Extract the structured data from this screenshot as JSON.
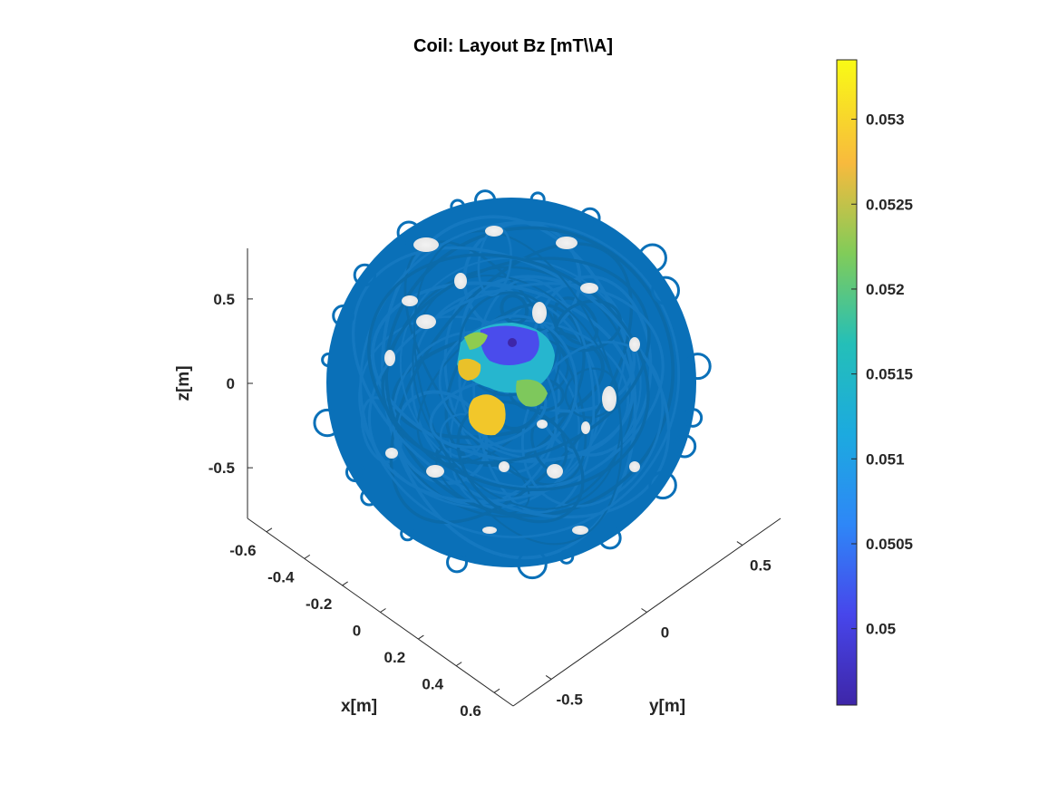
{
  "chart_data": {
    "type": "surface-3d",
    "title": "Coil: Layout Bz [mT\\\\A]",
    "xlabel": "x[m]",
    "ylabel": "y[m]",
    "zlabel": "z[m]",
    "x_ticks": [
      -0.6,
      -0.4,
      -0.2,
      0,
      0.2,
      0.4,
      0.6
    ],
    "x_tick_labels": [
      "-0.6",
      "-0.4",
      "-0.2",
      "0",
      "0.2",
      "0.4",
      "0.6"
    ],
    "y_ticks": [
      -0.5,
      0,
      0.5
    ],
    "y_tick_labels": [
      "-0.5",
      "0",
      "0.5"
    ],
    "z_ticks": [
      -0.5,
      0,
      0.5
    ],
    "z_tick_labels": [
      "-0.5",
      "0",
      "0.5"
    ],
    "xlim": [
      -0.7,
      0.7
    ],
    "ylim": [
      -0.7,
      0.7
    ],
    "zlim": [
      -0.8,
      0.8
    ],
    "colorbar": {
      "colormap": "parula",
      "range": [
        0.04955,
        0.05335
      ],
      "ticks": [
        0.05,
        0.0505,
        0.051,
        0.0515,
        0.052,
        0.0525,
        0.053
      ],
      "tick_labels": [
        "0.05",
        "0.0505",
        "0.051",
        "0.0515",
        "0.052",
        "0.0525",
        "0.053"
      ]
    },
    "series": [
      {
        "kind": "coil-wires",
        "color": "#0072bd",
        "shape": "sphere"
      },
      {
        "kind": "field-surface",
        "values_range": [
          0.04955,
          0.05335
        ]
      }
    ],
    "grid": false
  }
}
